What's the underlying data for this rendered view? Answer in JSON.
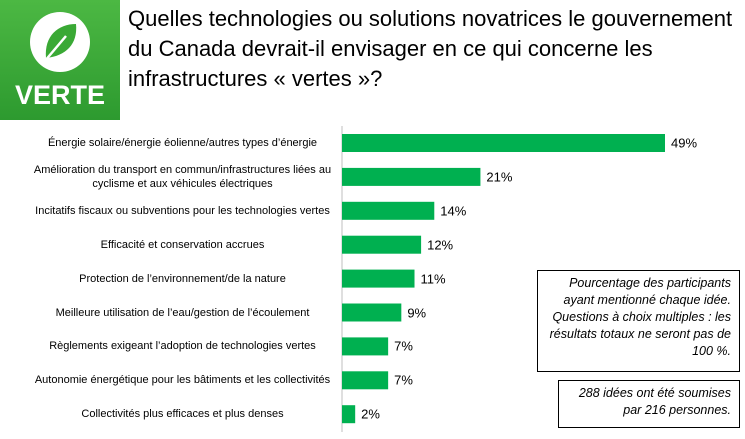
{
  "badge": "VERTE",
  "chart_data": {
    "type": "bar",
    "orientation": "horizontal",
    "title": "Quelles technologies ou solutions novatrices le gouvernement du Canada devrait-il envisager en ce qui concerne les infrastructures « vertes »?",
    "categories": [
      "Énergie solaire/énergie éolienne/autres types d’énergie",
      "Amélioration du transport en commun/infrastructures liées au cyclisme et aux véhicules électriques",
      "Incitatifs fiscaux ou subventions pour les technologies vertes",
      "Efficacité et conservation accrues",
      "Protection de l’environnement/de la nature",
      "Meilleure utilisation de l’eau/gestion de l’écoulement",
      "Règlements exigeant l’adoption de technologies vertes",
      "Autonomie énergétique pour les bâtiments et les collectivités",
      "Collectivités plus efficaces et plus denses"
    ],
    "values": [
      49,
      21,
      14,
      12,
      11,
      9,
      7,
      7,
      2
    ],
    "value_labels": [
      "49%",
      "21%",
      "14%",
      "12%",
      "11%",
      "9%",
      "7%",
      "7%",
      "2%"
    ],
    "color": "#00b050",
    "annotations": [
      "Pourcentage des participants ayant mentionné chaque idée. Questions à choix multiples : les résultats totaux ne seront pas de 100 %.",
      "288 idées ont été soumises par 216 personnes."
    ]
  }
}
